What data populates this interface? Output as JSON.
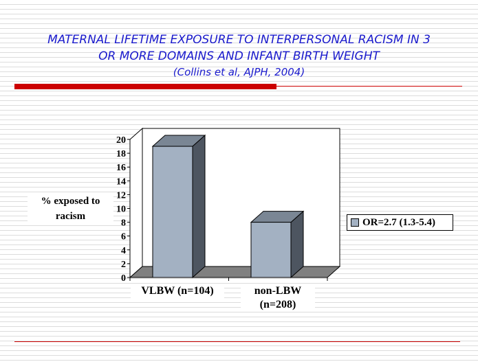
{
  "title": {
    "line1": "MATERNAL LIFETIME EXPOSURE TO INTERPERSONAL RACISM IN 3",
    "line2": "OR MORE DOMAINS AND INFANT BIRTH WEIGHT",
    "citation": "(Collins et al, AJPH, 2004)"
  },
  "colors": {
    "title": "#1a1acc",
    "accent": "#cc0000",
    "bar": "#a3b1c2"
  },
  "chart_data": {
    "type": "bar",
    "title": "MATERNAL LIFETIME EXPOSURE TO INTERPERSONAL RACISM IN 3 OR MORE DOMAINS AND INFANT BIRTH WEIGHT",
    "ylabel": "% exposed to racism",
    "ylabel_line1": "% exposed to",
    "ylabel_line2": "racism",
    "xlabel": "",
    "categories": [
      "VLBW (n=104)",
      "non-LBW (n=208)"
    ],
    "category_lines": [
      [
        "VLBW (n=104)"
      ],
      [
        "non-LBW",
        "(n=208)"
      ]
    ],
    "series": [
      {
        "name": "OR=2.7 (1.3-5.4)",
        "values": [
          19,
          8
        ]
      }
    ],
    "ylim": [
      0,
      20
    ],
    "yticks": [
      0,
      2,
      4,
      6,
      8,
      10,
      12,
      14,
      16,
      18,
      20
    ],
    "legend_position": "right",
    "grid": false,
    "style": "3d"
  }
}
